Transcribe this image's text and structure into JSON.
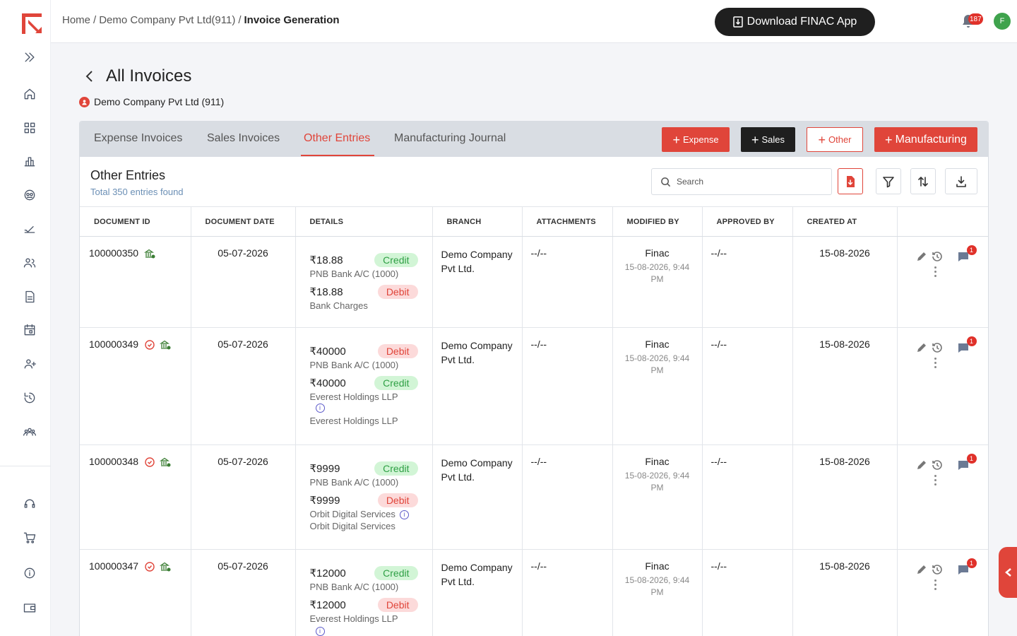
{
  "app": {
    "brand_color": "#e0453a"
  },
  "header": {
    "breadcrumb": [
      "Home",
      "Demo Company Pvt Ltd(911)",
      "Invoice Generation"
    ],
    "download_label": "Download FINAC App",
    "notification_count": "187",
    "avatar_initial": "F"
  },
  "page": {
    "title": "All Invoices",
    "company": "Demo Company Pvt Ltd (911)"
  },
  "tabs": [
    "Expense Invoices",
    "Sales Invoices",
    "Other Entries",
    "Manufacturing Journal"
  ],
  "active_tab": "Other Entries",
  "buttons": {
    "expense": "Expense",
    "sales": "Sales",
    "other": "Other",
    "manufacturing": "Manufacturing"
  },
  "section": {
    "title": "Other Entries",
    "subtitle": "Total 350 entries found",
    "search_placeholder": "Search"
  },
  "columns": [
    "DOCUMENT ID",
    "DOCUMENT DATE",
    "DETAILS",
    "BRANCH",
    "ATTACHMENTS",
    "MODIFIED BY",
    "APPROVED BY",
    "CREATED AT",
    ""
  ],
  "rows": [
    {
      "id": "100000350",
      "date": "05-07-2026",
      "line1": {
        "amount": "₹18.88",
        "type": "Credit",
        "account": "PNB Bank A/C (1000)"
      },
      "line2": {
        "amount": "₹18.88",
        "type": "Debit",
        "account": "Bank Charges"
      },
      "branch": "Demo Company Pvt Ltd.",
      "attachments": "--/--",
      "modified_by": "Finac",
      "modified_at": "15-08-2026, 9:44 PM",
      "approved_by": "--/--",
      "created_at": "15-08-2026",
      "comments": "1"
    },
    {
      "id": "100000349",
      "date": "05-07-2026",
      "line1": {
        "amount": "₹40000",
        "type": "Debit",
        "account": "PNB Bank A/C (1000)"
      },
      "line2": {
        "amount": "₹40000",
        "type": "Credit",
        "account": "Everest Holdings LLP",
        "note": "Everest Holdings LLP"
      },
      "branch": "Demo Company Pvt Ltd.",
      "attachments": "--/--",
      "modified_by": "Finac",
      "modified_at": "15-08-2026, 9:44 PM",
      "approved_by": "--/--",
      "created_at": "15-08-2026",
      "comments": "1"
    },
    {
      "id": "100000348",
      "date": "05-07-2026",
      "line1": {
        "amount": "₹9999",
        "type": "Credit",
        "account": "PNB Bank A/C (1000)"
      },
      "line2": {
        "amount": "₹9999",
        "type": "Debit",
        "account": "Orbit Digital Services",
        "note": "Orbit Digital Services"
      },
      "branch": "Demo Company Pvt Ltd.",
      "attachments": "--/--",
      "modified_by": "Finac",
      "modified_at": "15-08-2026, 9:44 PM",
      "approved_by": "--/--",
      "created_at": "15-08-2026",
      "comments": "1"
    },
    {
      "id": "100000347",
      "date": "05-07-2026",
      "line1": {
        "amount": "₹12000",
        "type": "Credit",
        "account": "PNB Bank A/C (1000)"
      },
      "line2": {
        "amount": "₹12000",
        "type": "Debit",
        "account": "Everest Holdings LLP"
      },
      "branch": "Demo Company Pvt Ltd.",
      "attachments": "--/--",
      "modified_by": "Finac",
      "modified_at": "15-08-2026, 9:44 PM",
      "approved_by": "--/--",
      "created_at": "15-08-2026",
      "comments": "1"
    }
  ]
}
